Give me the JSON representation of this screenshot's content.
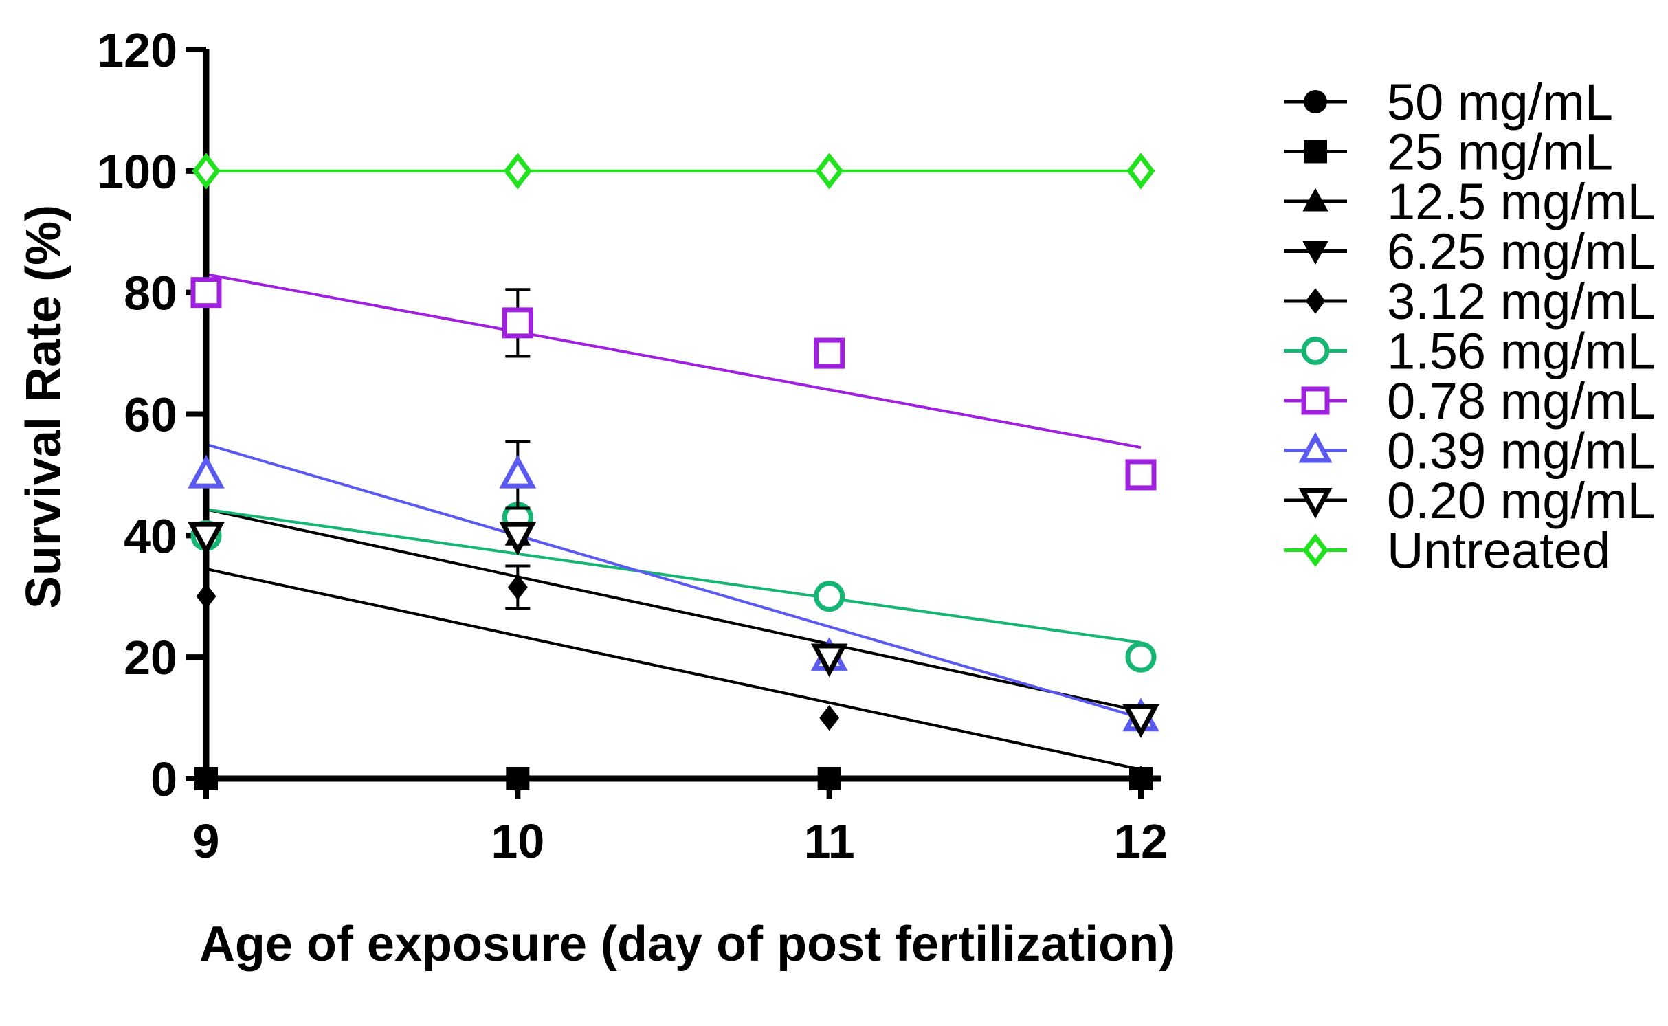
{
  "chart_data": {
    "type": "scatter",
    "title": "",
    "xlabel": "Age of exposure (day of post fertilization)",
    "ylabel": "Survival Rate (%)",
    "xlim": [
      9,
      12
    ],
    "ylim": [
      0,
      120
    ],
    "x": [
      9,
      10,
      11,
      12
    ],
    "x_ticks": [
      "9",
      "10",
      "11",
      "12"
    ],
    "y_ticks": [
      "0",
      "20",
      "40",
      "60",
      "80",
      "100",
      "120"
    ],
    "legend_position": "right",
    "series": [
      {
        "name": "50 mg/mL",
        "marker": "circle-filled",
        "color": "#000000",
        "values": [
          40,
          0,
          0,
          0
        ],
        "trend": null
      },
      {
        "name": "25 mg/mL",
        "marker": "square-filled",
        "color": "#000000",
        "values": [
          0,
          0,
          0,
          0
        ],
        "trend": [
          0,
          0
        ]
      },
      {
        "name": "12.5 mg/mL",
        "marker": "triangle-up-filled",
        "color": "#000000",
        "values": [
          40,
          40,
          20,
          10
        ],
        "trend": null
      },
      {
        "name": "6.25 mg/mL",
        "marker": "triangle-down-filled",
        "color": "#000000",
        "values": [
          40,
          40,
          20,
          10
        ],
        "trend": [
          44.3,
          11.1
        ]
      },
      {
        "name": "3.12 mg/mL",
        "marker": "diamond-filled",
        "color": "#000000",
        "values": [
          30,
          31.5,
          10,
          0
        ],
        "trend": [
          34.5,
          1.5
        ],
        "error": [
          0,
          3.5,
          0,
          0
        ]
      },
      {
        "name": "1.56 mg/mL",
        "marker": "circle-open",
        "color": "#15b573",
        "values": [
          40,
          43,
          30,
          20
        ],
        "trend": [
          44.3,
          22.4
        ]
      },
      {
        "name": "0.78 mg/mL",
        "marker": "square-open",
        "color": "#a020e0",
        "values": [
          80,
          75,
          70,
          50
        ],
        "trend": [
          83,
          54.5
        ],
        "error": [
          0,
          5.5,
          0,
          0
        ]
      },
      {
        "name": "0.39 mg/mL",
        "marker": "triangle-up-open",
        "color": "#5a5af0",
        "values": [
          50,
          50,
          20,
          10
        ],
        "trend": [
          55,
          10
        ],
        "error": [
          0,
          5.5,
          0,
          0
        ]
      },
      {
        "name": "0.20 mg/mL",
        "marker": "triangle-down-open",
        "color": "#000000",
        "values": [
          40,
          40,
          20,
          10
        ],
        "trend": null
      },
      {
        "name": "Untreated",
        "marker": "diamond-open",
        "color": "#22e21f",
        "values": [
          100,
          100,
          100,
          100
        ],
        "trend": [
          100,
          100
        ]
      }
    ]
  }
}
